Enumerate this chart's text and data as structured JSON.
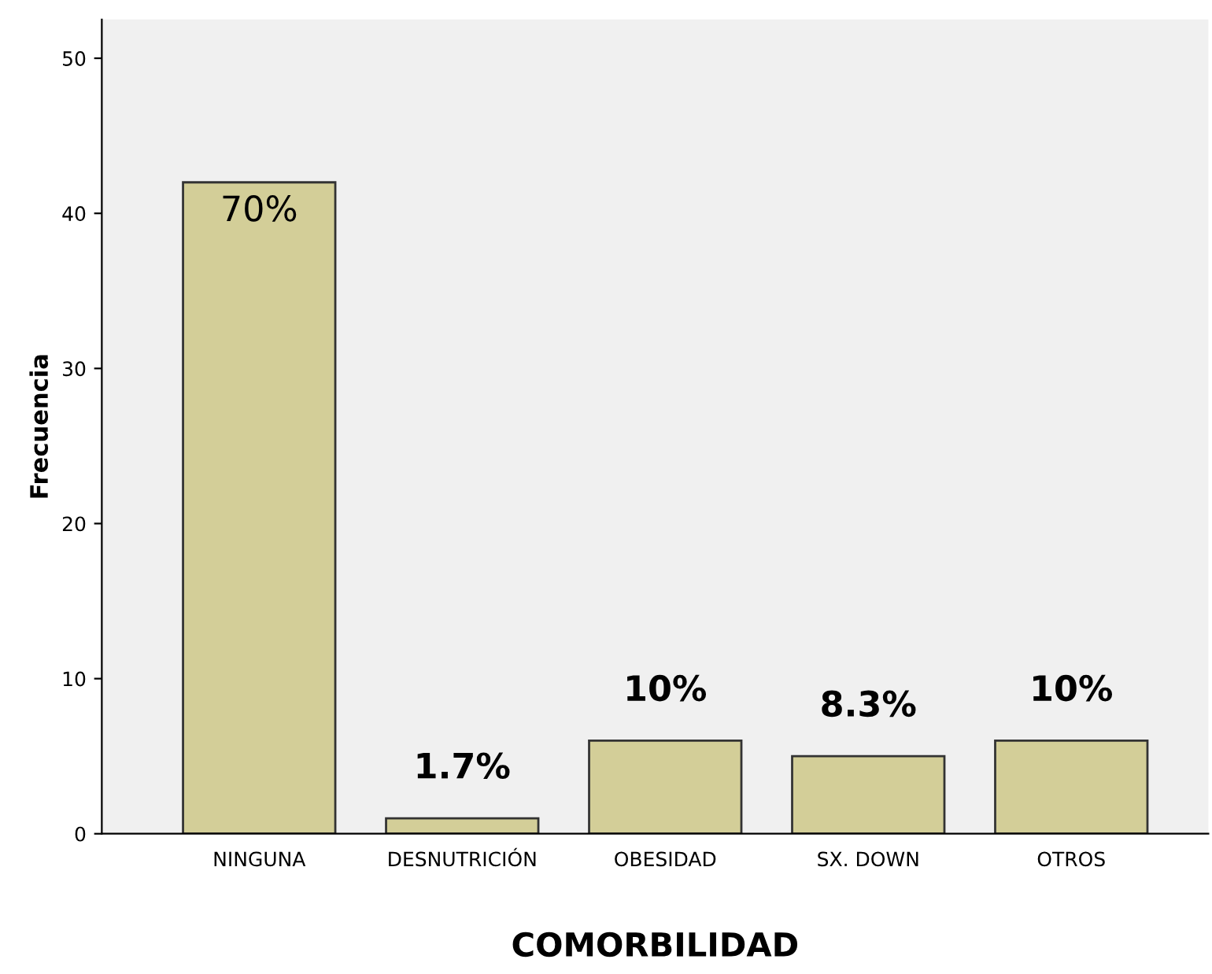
{
  "chart_data": {
    "type": "bar",
    "xlabel": "COMORBILIDAD",
    "ylabel": "Frecuencia",
    "categories": [
      "NINGUNA",
      "DESNUTRICIÓN",
      "OBESIDAD",
      "SX. DOWN",
      "OTROS"
    ],
    "values": [
      42,
      1,
      6,
      5,
      6
    ],
    "annotations": [
      {
        "text": "70%",
        "x": "NINGUNA",
        "y": 42
      },
      {
        "text": "1.7%",
        "x": "DESNUTRICIÓN",
        "y": 1
      },
      {
        "text": "10%",
        "x": "OBESIDAD",
        "y": 6
      },
      {
        "text": "8.3%",
        "x": "SX. DOWN",
        "y": 5
      },
      {
        "text": "10%",
        "x": "OTROS",
        "y": 6
      }
    ],
    "color": "#d3ce98",
    "ylim": [
      0,
      52.5
    ],
    "yticks": [
      0,
      10,
      20,
      30,
      40,
      50
    ],
    "grid": false,
    "legend": false
  }
}
